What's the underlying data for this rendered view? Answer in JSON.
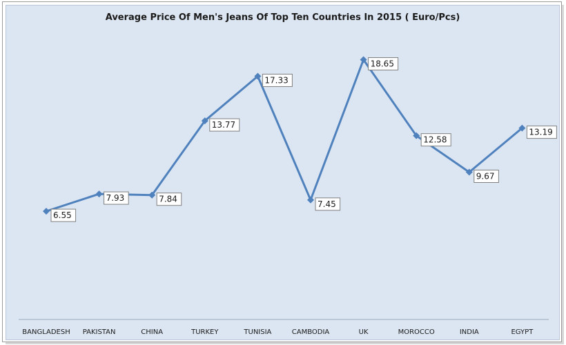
{
  "chart_data": {
    "type": "line",
    "title": "Average Price Of Men's Jeans Of Top Ten Countries In 2015 ( Euro/Pcs)",
    "xlabel": "",
    "ylabel": "",
    "categories": [
      "BANGLADESH",
      "PAKISTAN",
      "CHINA",
      "TURKEY",
      "TUNISIA",
      "CAMBODIA",
      "UK",
      "MOROCCO",
      "INDIA",
      "EGYPT"
    ],
    "series": [
      {
        "values": [
          6.55,
          7.93,
          7.84,
          13.77,
          17.33,
          7.45,
          18.65,
          12.58,
          9.67,
          13.19
        ],
        "labels": [
          "6.55",
          "7.93",
          "7.84",
          "13.77",
          "17.33",
          "7.45",
          "18.65",
          "12.58",
          "9.67",
          "13.19"
        ],
        "color": "#4f81bd"
      }
    ],
    "ylim": [
      0,
      20
    ],
    "grid": false,
    "legend": "none"
  }
}
